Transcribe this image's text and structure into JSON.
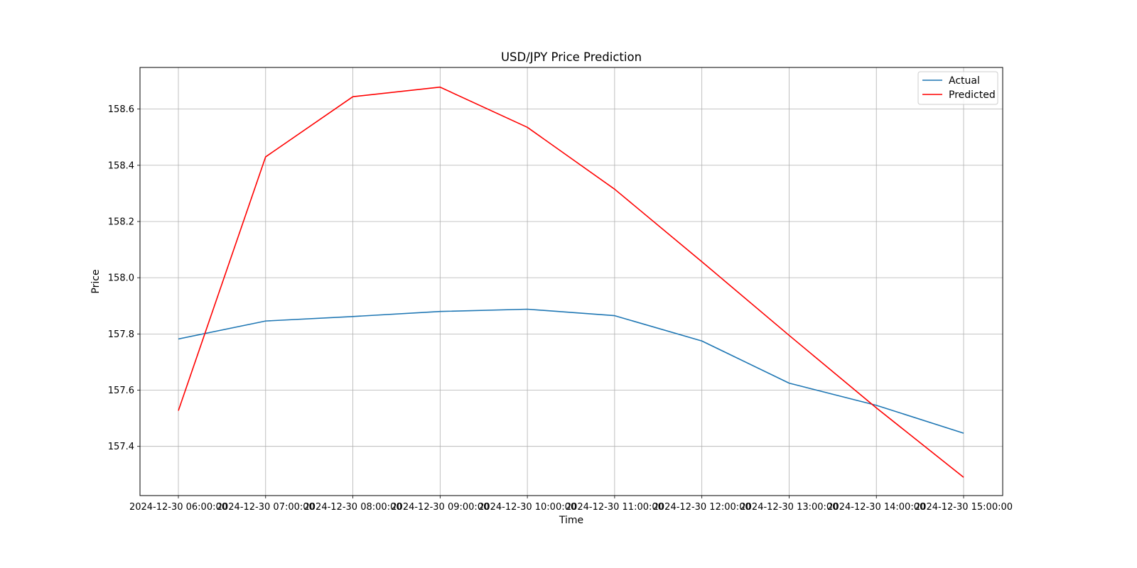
{
  "chart_data": {
    "type": "line",
    "title": "USD/JPY Price Prediction",
    "xlabel": "Time",
    "ylabel": "Price",
    "categories": [
      "2024-12-30 06:00:00",
      "2024-12-30 07:00:00",
      "2024-12-30 08:00:00",
      "2024-12-30 09:00:00",
      "2024-12-30 10:00:00",
      "2024-12-30 11:00:00",
      "2024-12-30 12:00:00",
      "2024-12-30 13:00:00",
      "2024-12-30 14:00:00",
      "2024-12-30 15:00:00"
    ],
    "ylim": [
      157.225,
      158.748
    ],
    "yticks": [
      157.4,
      157.6,
      157.8,
      158.0,
      158.2,
      158.4,
      158.6
    ],
    "ytick_labels": [
      "157.4",
      "157.6",
      "157.8",
      "158.0",
      "158.2",
      "158.4",
      "158.6"
    ],
    "grid": true,
    "legend_position": "top-right",
    "series": [
      {
        "name": "Actual",
        "color": "#1f77b4",
        "values": [
          157.782,
          157.846,
          157.862,
          157.88,
          157.888,
          157.865,
          157.775,
          157.625,
          157.546,
          157.447
        ]
      },
      {
        "name": "Predicted",
        "color": "#ff0000",
        "values": [
          157.527,
          158.43,
          158.644,
          158.678,
          158.535,
          158.315,
          158.057,
          157.795,
          157.537,
          157.29
        ]
      }
    ]
  }
}
